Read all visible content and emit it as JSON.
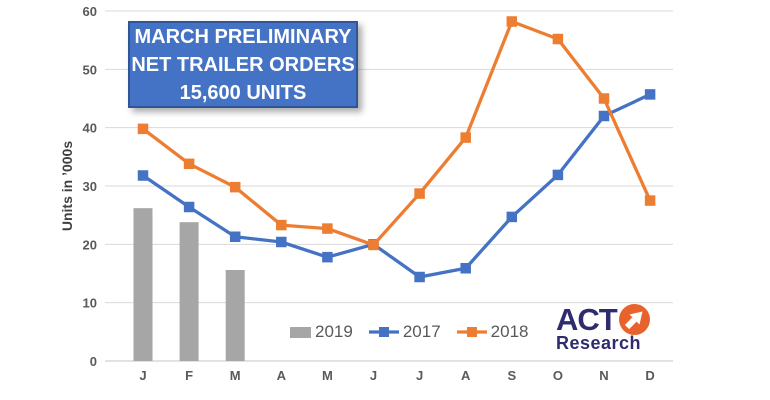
{
  "title_box": {
    "line1": "MARCH PRELIMINARY",
    "line2": "NET TRAILER ORDERS",
    "line3": "15,600 UNITS",
    "fill": "#4472C4",
    "border": "#2F5597",
    "text_color": "#FFFFFF"
  },
  "chart_data": {
    "type": "combo",
    "title": "March Preliminary Net Trailer Orders 15,600 Units",
    "ylabel": "Units in ’000s",
    "xlabel": "",
    "categories": [
      "J",
      "F",
      "M",
      "A",
      "M",
      "J",
      "J",
      "A",
      "S",
      "O",
      "N",
      "D"
    ],
    "y_ticks": [
      0,
      10,
      20,
      30,
      40,
      50,
      60
    ],
    "ylim": [
      0,
      60
    ],
    "grid": "horizontal",
    "legend_position": "bottom-center",
    "legend_order": [
      "2019",
      "2017",
      "2018"
    ],
    "series": [
      {
        "name": "2019",
        "type": "bar",
        "color": "#A6A6A6",
        "values": [
          26.2,
          23.8,
          15.6,
          null,
          null,
          null,
          null,
          null,
          null,
          null,
          null,
          null
        ]
      },
      {
        "name": "2017",
        "type": "line",
        "color": "#4472C4",
        "values": [
          31.8,
          26.4,
          21.3,
          20.4,
          17.8,
          20.0,
          14.4,
          15.9,
          24.7,
          31.9,
          42.0,
          45.7
        ]
      },
      {
        "name": "2018",
        "type": "line",
        "color": "#ED7D31",
        "values": [
          39.8,
          33.8,
          29.8,
          23.3,
          22.7,
          19.9,
          28.7,
          38.3,
          58.2,
          55.2,
          45.0,
          27.5
        ]
      }
    ]
  },
  "logo": {
    "line1": "ACT",
    "line2": "Research",
    "arrow_icon": "arrow-up-right-icon",
    "navy": "#2E2C6F",
    "orange": "#E8632C"
  },
  "colors": {
    "grid": "#D9D9D9",
    "zero_line": "#C6C6C6",
    "axis_text": "#595959",
    "ylabel_text": "#404040",
    "background": "#FFFFFF"
  }
}
